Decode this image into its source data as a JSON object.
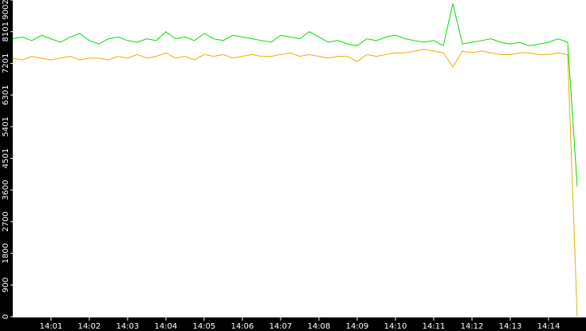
{
  "chart_data": {
    "type": "line",
    "categories": [
      null,
      null,
      null,
      null,
      "14:01",
      null,
      null,
      null,
      "14:02",
      null,
      null,
      null,
      "14:03",
      null,
      null,
      null,
      "14:04",
      null,
      null,
      null,
      "14:05",
      null,
      null,
      null,
      "14:06",
      null,
      null,
      null,
      "14:07",
      null,
      null,
      null,
      "14:08",
      null,
      null,
      null,
      "14:09",
      null,
      null,
      null,
      "14:10",
      null,
      null,
      null,
      "14:11",
      null,
      null,
      null,
      "14:12",
      null,
      null,
      null,
      "14:13",
      null,
      null,
      null,
      "14:14",
      null,
      null,
      null
    ],
    "series": [
      {
        "color": "#00e000",
        "values": [
          7900,
          7950,
          7850,
          8000,
          7900,
          7800,
          7950,
          8050,
          7850,
          7750,
          7900,
          7950,
          7850,
          7800,
          7900,
          7850,
          8100,
          7900,
          7950,
          7850,
          8050,
          7900,
          7850,
          8000,
          7950,
          7900,
          7850,
          7800,
          8000,
          7950,
          7900,
          8100,
          7950,
          7800,
          7850,
          7750,
          7700,
          7900,
          7850,
          7950,
          8000,
          7900,
          7850,
          7800,
          7850,
          7700,
          8900,
          7750,
          7800,
          7850,
          7900,
          7800,
          7750,
          7800,
          7700,
          7750,
          7800,
          7900,
          7800,
          3700
        ]
      },
      {
        "color": "#e8b000",
        "values": [
          7350,
          7300,
          7400,
          7350,
          7300,
          7350,
          7400,
          7300,
          7350,
          7350,
          7300,
          7400,
          7350,
          7450,
          7350,
          7400,
          7500,
          7350,
          7400,
          7300,
          7450,
          7400,
          7450,
          7350,
          7400,
          7450,
          7400,
          7400,
          7450,
          7500,
          7400,
          7450,
          7400,
          7350,
          7400,
          7400,
          7250,
          7450,
          7400,
          7450,
          7500,
          7500,
          7550,
          7600,
          7550,
          7500,
          7100,
          7550,
          7500,
          7550,
          7500,
          7450,
          7450,
          7500,
          7500,
          7450,
          7450,
          7500,
          7450,
          0
        ]
      }
    ],
    "ylim": [
      0,
      9002
    ],
    "yticks": [
      0,
      900,
      1800,
      2700,
      3600,
      4501,
      5401,
      6301,
      7201,
      8101,
      9002
    ]
  }
}
